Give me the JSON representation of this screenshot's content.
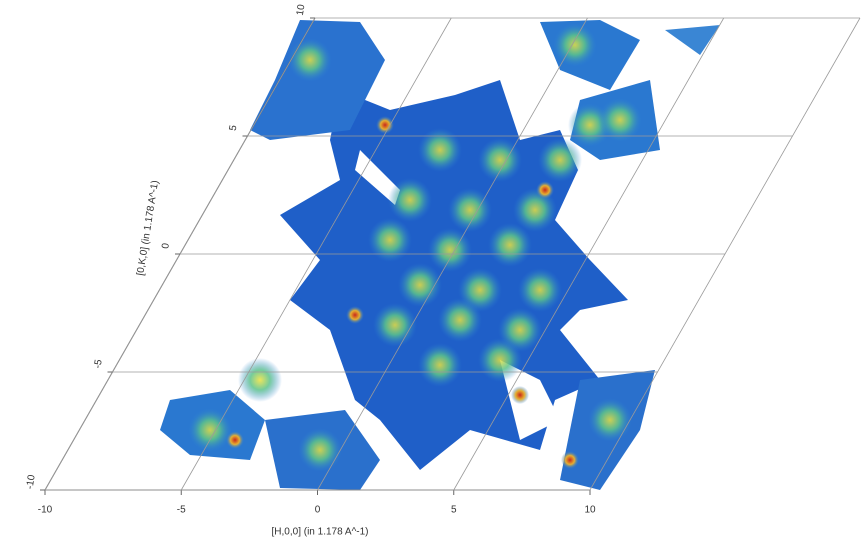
{
  "chart_data": {
    "type": "heatmap",
    "x_label": "[H,0,0] (in 1.178 A^-1)",
    "y_label": "[0,K,0] (in 1.178 A^-1)",
    "xlim": [
      -10,
      10
    ],
    "ylim": [
      -10,
      10
    ],
    "xticks": [
      -10,
      -5,
      0,
      5,
      10
    ],
    "yticks": [
      -10,
      -5,
      0,
      5,
      10
    ],
    "grid": true
  }
}
